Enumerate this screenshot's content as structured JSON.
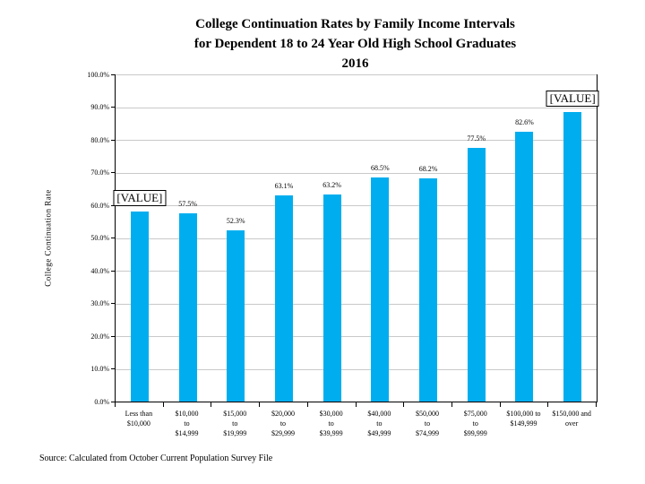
{
  "title_lines": [
    "College Continuation Rates by Family Income Intervals",
    "for Dependent 18 to 24 Year Old High School Graduates",
    "2016"
  ],
  "source_note": "Source: Calculated from October Current Population Survey File",
  "colors": {
    "bar": "#00AEEF",
    "gridline": "#C9C9C9",
    "axis": "#000000",
    "text": "#000000"
  },
  "chart_data": {
    "type": "bar",
    "title": "College Continuation Rates by Family Income Intervals for Dependent 18 to 24 Year Old High School Graduates 2016",
    "xlabel": "",
    "ylabel": "College Continuation Rate",
    "ylim": [
      0,
      100
    ],
    "ytick_step": 10,
    "ytick_labels": [
      "0.0%",
      "10.0%",
      "20.0%",
      "30.0%",
      "40.0%",
      "50.0%",
      "60.0%",
      "70.0%",
      "80.0%",
      "90.0%",
      "100.0%"
    ],
    "grid": true,
    "legend": false,
    "categories": [
      "Less than $10,000",
      "$10,000 to $14,999",
      "$15,000 to $19,999",
      "$20,000 to $29,999",
      "$30,000 to $39,999",
      "$40,000 to $49,999",
      "$50,000 to $74,999",
      "$75,000 to $99,999",
      "$100,000 to $149,999",
      "$150,000 and over"
    ],
    "categories_lines": [
      [
        "Less than",
        "$10,000"
      ],
      [
        "$10,000",
        "to",
        "$14,999"
      ],
      [
        "$15,000",
        "to",
        "$19,999"
      ],
      [
        "$20,000",
        "to",
        "$29,999"
      ],
      [
        "$30,000",
        "to",
        "$39,999"
      ],
      [
        "$40,000",
        "to",
        "$49,999"
      ],
      [
        "$50,000",
        "to",
        "$74,999"
      ],
      [
        "$75,000",
        "to",
        "$99,999"
      ],
      [
        "$100,000 to",
        "$149,999"
      ],
      [
        "$150,000 and",
        "over"
      ]
    ],
    "values": [
      58.0,
      57.5,
      52.3,
      63.1,
      63.2,
      68.5,
      68.2,
      77.5,
      82.6,
      88.5
    ],
    "data_labels": [
      "[VALUE]",
      "57.5%",
      "52.3%",
      "63.1%",
      "63.2%",
      "68.5%",
      "68.2%",
      "77.5%",
      "82.6%",
      "[VALUE]"
    ],
    "boxed_label_indices": [
      0,
      9
    ]
  }
}
